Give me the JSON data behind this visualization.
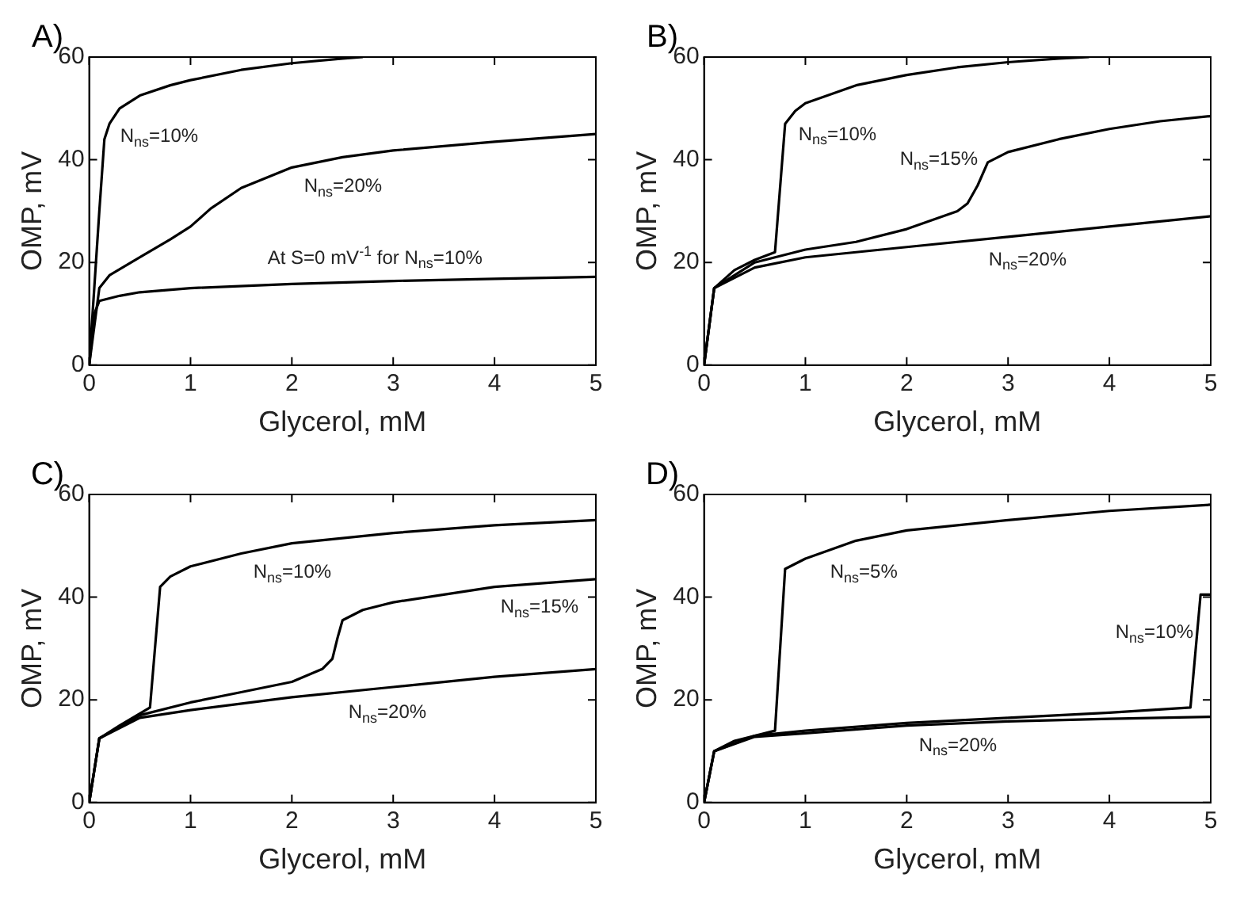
{
  "chart_data": [
    {
      "type": "line",
      "title": "A)",
      "xlabel": "Glycerol, mM",
      "ylabel": "OMP, mV",
      "xlim": [
        0,
        5
      ],
      "ylim": [
        0,
        60
      ],
      "xticks": [
        0,
        1,
        2,
        3,
        4,
        5
      ],
      "yticks": [
        0,
        20,
        40,
        60
      ],
      "series": [
        {
          "name": "N$_{ns}$=10%",
          "color": "#000000",
          "x": [
            0,
            0.1,
            0.15,
            0.2,
            0.3,
            0.5,
            0.8,
            1,
            1.5,
            2,
            2.5,
            2.7
          ],
          "values": [
            0,
            30,
            44,
            47,
            50,
            52.5,
            54.5,
            55.5,
            57.5,
            58.8,
            59.7,
            60
          ]
        },
        {
          "name": "N$_{ns}$=20%",
          "color": "#000000",
          "x": [
            0,
            0.1,
            0.2,
            0.5,
            0.8,
            1,
            1.2,
            1.5,
            2,
            2.5,
            3,
            4,
            5
          ],
          "values": [
            0,
            15,
            17.5,
            21,
            24.5,
            27,
            30.5,
            34.5,
            38.5,
            40.5,
            41.8,
            43.5,
            45
          ]
        },
        {
          "name": "At S=0 mV$^{-1}$ for N$_{ns}$=10%",
          "color": "#000000",
          "x": [
            0,
            0.05,
            0.1,
            0.3,
            0.5,
            1,
            2,
            3,
            4,
            5
          ],
          "values": [
            0,
            10,
            12.5,
            13.5,
            14.2,
            15,
            15.8,
            16.4,
            16.8,
            17.2
          ]
        }
      ]
    },
    {
      "type": "line",
      "title": "B)",
      "xlabel": "Glycerol, mM",
      "ylabel": "OMP, mV",
      "xlim": [
        0,
        5
      ],
      "ylim": [
        0,
        60
      ],
      "xticks": [
        0,
        1,
        2,
        3,
        4,
        5
      ],
      "yticks": [
        0,
        20,
        40,
        60
      ],
      "series": [
        {
          "name": "N$_{ns}$=10%",
          "color": "#000000",
          "x": [
            0,
            0.1,
            0.3,
            0.5,
            0.7,
            0.8,
            0.9,
            1,
            1.5,
            2,
            2.5,
            3,
            3.5,
            3.8
          ],
          "values": [
            0,
            15,
            18.5,
            20.5,
            22,
            47,
            49.5,
            51,
            54.5,
            56.5,
            58,
            59,
            59.7,
            60
          ]
        },
        {
          "name": "N$_{ns}$=15%",
          "color": "#000000",
          "x": [
            0,
            0.1,
            0.5,
            1,
            1.5,
            2,
            2.5,
            2.6,
            2.7,
            2.8,
            3,
            3.5,
            4,
            4.5,
            5
          ],
          "values": [
            0,
            15,
            20,
            22.5,
            24,
            26.5,
            30,
            31.5,
            35,
            39.5,
            41.5,
            44,
            46,
            47.5,
            48.5
          ]
        },
        {
          "name": "N$_{ns}$=20%",
          "color": "#000000",
          "x": [
            0,
            0.1,
            0.5,
            1,
            2,
            3,
            4,
            5
          ],
          "values": [
            0,
            15,
            19,
            21,
            23,
            25,
            27,
            29
          ]
        }
      ]
    },
    {
      "type": "line",
      "title": "C)",
      "xlabel": "Glycerol, mM",
      "ylabel": "OMP, mV",
      "xlim": [
        0,
        5
      ],
      "ylim": [
        0,
        60
      ],
      "xticks": [
        0,
        1,
        2,
        3,
        4,
        5
      ],
      "yticks": [
        0,
        20,
        40,
        60
      ],
      "series": [
        {
          "name": "N$_{ns}$=10%",
          "color": "#000000",
          "x": [
            0,
            0.1,
            0.3,
            0.6,
            0.7,
            0.8,
            1,
            1.5,
            2,
            3,
            4,
            5
          ],
          "values": [
            0,
            12.5,
            15,
            18.5,
            42,
            44,
            46,
            48.5,
            50.5,
            52.5,
            54,
            55
          ]
        },
        {
          "name": "N$_{ns}$=15%",
          "color": "#000000",
          "x": [
            0,
            0.1,
            0.5,
            1,
            1.5,
            2,
            2.3,
            2.4,
            2.45,
            2.5,
            2.7,
            3,
            3.5,
            4,
            5
          ],
          "values": [
            0,
            12.5,
            17,
            19.5,
            21.5,
            23.5,
            26,
            28,
            32,
            35.5,
            37.5,
            39,
            40.5,
            42,
            43.5
          ]
        },
        {
          "name": "N$_{ns}$=20%",
          "color": "#000000",
          "x": [
            0,
            0.1,
            0.5,
            1,
            2,
            3,
            4,
            5
          ],
          "values": [
            0,
            12.5,
            16.5,
            18,
            20.5,
            22.5,
            24.5,
            26
          ]
        }
      ]
    },
    {
      "type": "line",
      "title": "D)",
      "xlabel": "Glycerol, mM",
      "ylabel": "OMP, mV",
      "xlim": [
        0,
        5
      ],
      "ylim": [
        0,
        60
      ],
      "xticks": [
        0,
        1,
        2,
        3,
        4,
        5
      ],
      "yticks": [
        0,
        20,
        40,
        60
      ],
      "series": [
        {
          "name": "N$_{ns}$=5%",
          "color": "#000000",
          "x": [
            0,
            0.1,
            0.3,
            0.7,
            0.8,
            1,
            1.5,
            2,
            3,
            4,
            5
          ],
          "values": [
            0,
            10,
            12,
            14,
            45.5,
            47.5,
            51,
            53,
            55,
            56.8,
            58
          ]
        },
        {
          "name": "N$_{ns}$=10%",
          "color": "#000000",
          "x": [
            0,
            0.1,
            0.5,
            1,
            2,
            3,
            4,
            4.8,
            4.9,
            5
          ],
          "values": [
            0,
            10,
            13,
            14,
            15.5,
            16.5,
            17.5,
            18.5,
            40.5,
            40.5
          ]
        },
        {
          "name": "N$_{ns}$=20%",
          "color": "#000000",
          "x": [
            0,
            0.1,
            0.5,
            1,
            2,
            3,
            4,
            5
          ],
          "values": [
            0,
            10,
            12.8,
            13.5,
            15,
            15.8,
            16.3,
            16.7
          ]
        }
      ]
    }
  ]
}
